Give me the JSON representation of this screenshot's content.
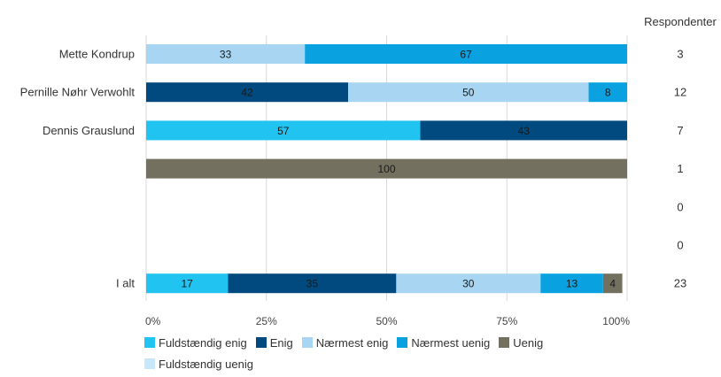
{
  "chart_data": {
    "type": "bar",
    "orientation": "horizontal",
    "stacked": true,
    "right_column_header": "Respondenter",
    "categories": [
      "Mette Kondrup",
      "Pernille Nøhr Verwohlt",
      "Dennis Grauslund",
      "",
      "",
      "",
      "I alt"
    ],
    "respondents": [
      "3",
      "12",
      "7",
      "1",
      "0",
      "0",
      "23"
    ],
    "series": [
      {
        "name": "Fuldstændig enig",
        "color": "#21c3f0",
        "values": [
          0,
          0,
          57,
          0,
          0,
          0,
          17
        ]
      },
      {
        "name": "Enig",
        "color": "#004a7f",
        "values": [
          0,
          42,
          43,
          0,
          0,
          0,
          35
        ]
      },
      {
        "name": "Nærmest enig",
        "color": "#a8d5f2",
        "values": [
          33,
          50,
          0,
          0,
          0,
          0,
          30
        ]
      },
      {
        "name": "Nærmest uenig",
        "color": "#0aa1e1",
        "values": [
          67,
          8,
          0,
          0,
          0,
          0,
          13
        ]
      },
      {
        "name": "Uenig",
        "color": "#73705f",
        "values": [
          0,
          0,
          0,
          100,
          0,
          0,
          4
        ]
      },
      {
        "name": "Fuldstændig uenig",
        "color": "#c9e7fb",
        "values": [
          0,
          0,
          0,
          0,
          0,
          0,
          0
        ]
      }
    ],
    "xlim": [
      0,
      100
    ],
    "x_ticks": [
      "0%",
      "25%",
      "50%",
      "75%",
      "100%"
    ],
    "grid": true,
    "legend_position": "bottom"
  }
}
